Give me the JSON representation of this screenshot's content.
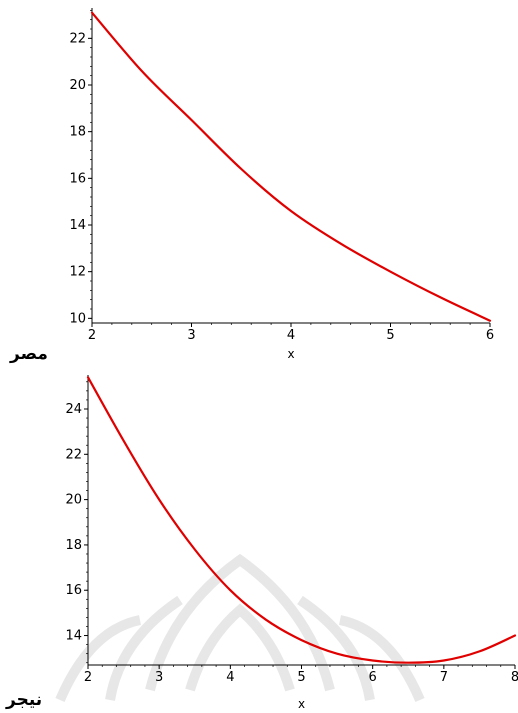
{
  "captions": [
    "مصر",
    "نيجر"
  ],
  "colors": {
    "curve": "#e00000",
    "axis": "#000000",
    "background": "#ffffff",
    "watermark": "#dcdcdc"
  },
  "chart_data": [
    {
      "type": "line",
      "title": "",
      "xlabel": "x",
      "ylabel": "",
      "xlim": [
        2,
        6
      ],
      "ylim": [
        9.8,
        23.3
      ],
      "xticks": [
        "2",
        "3",
        "4",
        "5",
        "6"
      ],
      "yticks": [
        "10",
        "12",
        "14",
        "16",
        "18",
        "20",
        "22"
      ],
      "grid": false,
      "series": [
        {
          "x": [
            2.0,
            2.5,
            3.0,
            3.5,
            4.0,
            4.5,
            5.0,
            5.5,
            6.0
          ],
          "y": [
            23.1,
            20.6,
            18.5,
            16.4,
            14.6,
            13.2,
            12.0,
            10.9,
            9.9
          ]
        }
      ]
    },
    {
      "type": "line",
      "title": "",
      "xlabel": "x",
      "ylabel": "",
      "xlim": [
        2,
        8
      ],
      "ylim": [
        12.7,
        25.5
      ],
      "xticks": [
        "2",
        "3",
        "4",
        "5",
        "6",
        "7",
        "8"
      ],
      "yticks": [
        "14",
        "16",
        "18",
        "20",
        "22",
        "24"
      ],
      "grid": false,
      "series": [
        {
          "x": [
            2.0,
            2.5,
            3.0,
            3.5,
            4.0,
            4.5,
            5.0,
            5.5,
            6.0,
            6.5,
            7.0,
            7.5,
            8.0
          ],
          "y": [
            25.4,
            22.6,
            20.0,
            17.8,
            16.0,
            14.7,
            13.8,
            13.2,
            12.9,
            12.8,
            12.9,
            13.3,
            14.0
          ]
        }
      ]
    }
  ]
}
